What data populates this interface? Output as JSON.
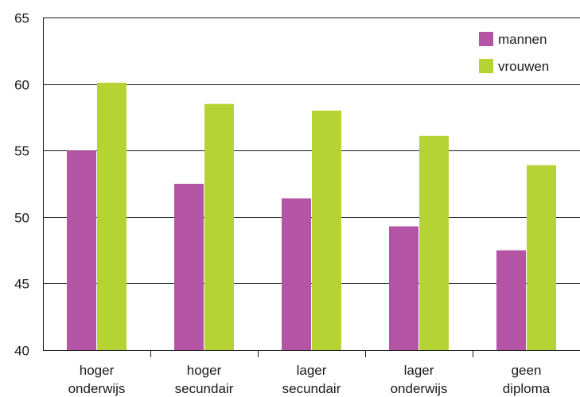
{
  "chart_data": {
    "type": "bar",
    "categories": [
      [
        "hoger",
        "onderwijs"
      ],
      [
        "hoger",
        "secundair"
      ],
      [
        "lager",
        "secundair"
      ],
      [
        "lager",
        "onderwijs"
      ],
      [
        "geen",
        "diploma"
      ]
    ],
    "series": [
      {
        "name": "mannen",
        "color": "#b354a4",
        "values": [
          55.0,
          52.5,
          51.4,
          49.3,
          47.5
        ]
      },
      {
        "name": "vrouwen",
        "color": "#b5d334",
        "values": [
          60.1,
          58.5,
          58.0,
          56.1,
          53.9
        ]
      }
    ],
    "ylim": [
      40,
      65
    ],
    "yticks": [
      40,
      45,
      50,
      55,
      60,
      65
    ],
    "grid": true,
    "legend_position": "top-right"
  }
}
